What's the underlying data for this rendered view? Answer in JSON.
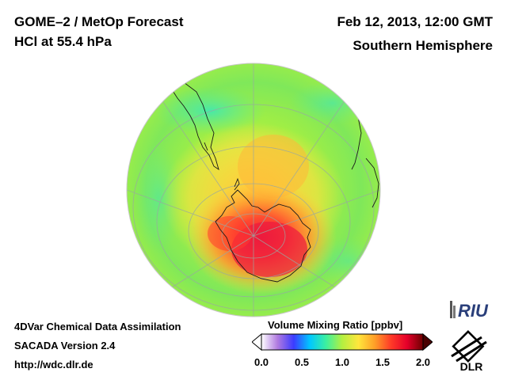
{
  "header": {
    "title_line1": "GOME–2 / MetOp Forecast",
    "title_line2": "HCl at 55.4 hPa",
    "date": "Feb 12, 2013, 12:00 GMT",
    "region": "Southern Hemisphere"
  },
  "footer": {
    "line1": "4DVar Chemical Data Assimilation",
    "line2": "SACADA Version 2.4",
    "line3": "http://wdc.dlr.de"
  },
  "colorbar": {
    "title": "Volume Mixing Ratio [ppbv]",
    "min": 0.0,
    "max": 2.0,
    "ticks": [
      "0.0",
      "0.5",
      "1.0",
      "1.5",
      "2.0"
    ],
    "colors": [
      "#ffffff",
      "#b07ae0",
      "#3b3bff",
      "#00c8ff",
      "#3cf0a0",
      "#b4f040",
      "#ffe63c",
      "#ffa028",
      "#ff3c28",
      "#e6002a",
      "#6e0000"
    ]
  },
  "map": {
    "projection": "orthographic-south-polar",
    "field_description_values": {
      "background_level": 1.05,
      "mid_latitude_band_level": 0.85,
      "polar_core_level": 1.75
    }
  },
  "logos": {
    "riu": "RIU",
    "dlr": "DLR"
  }
}
